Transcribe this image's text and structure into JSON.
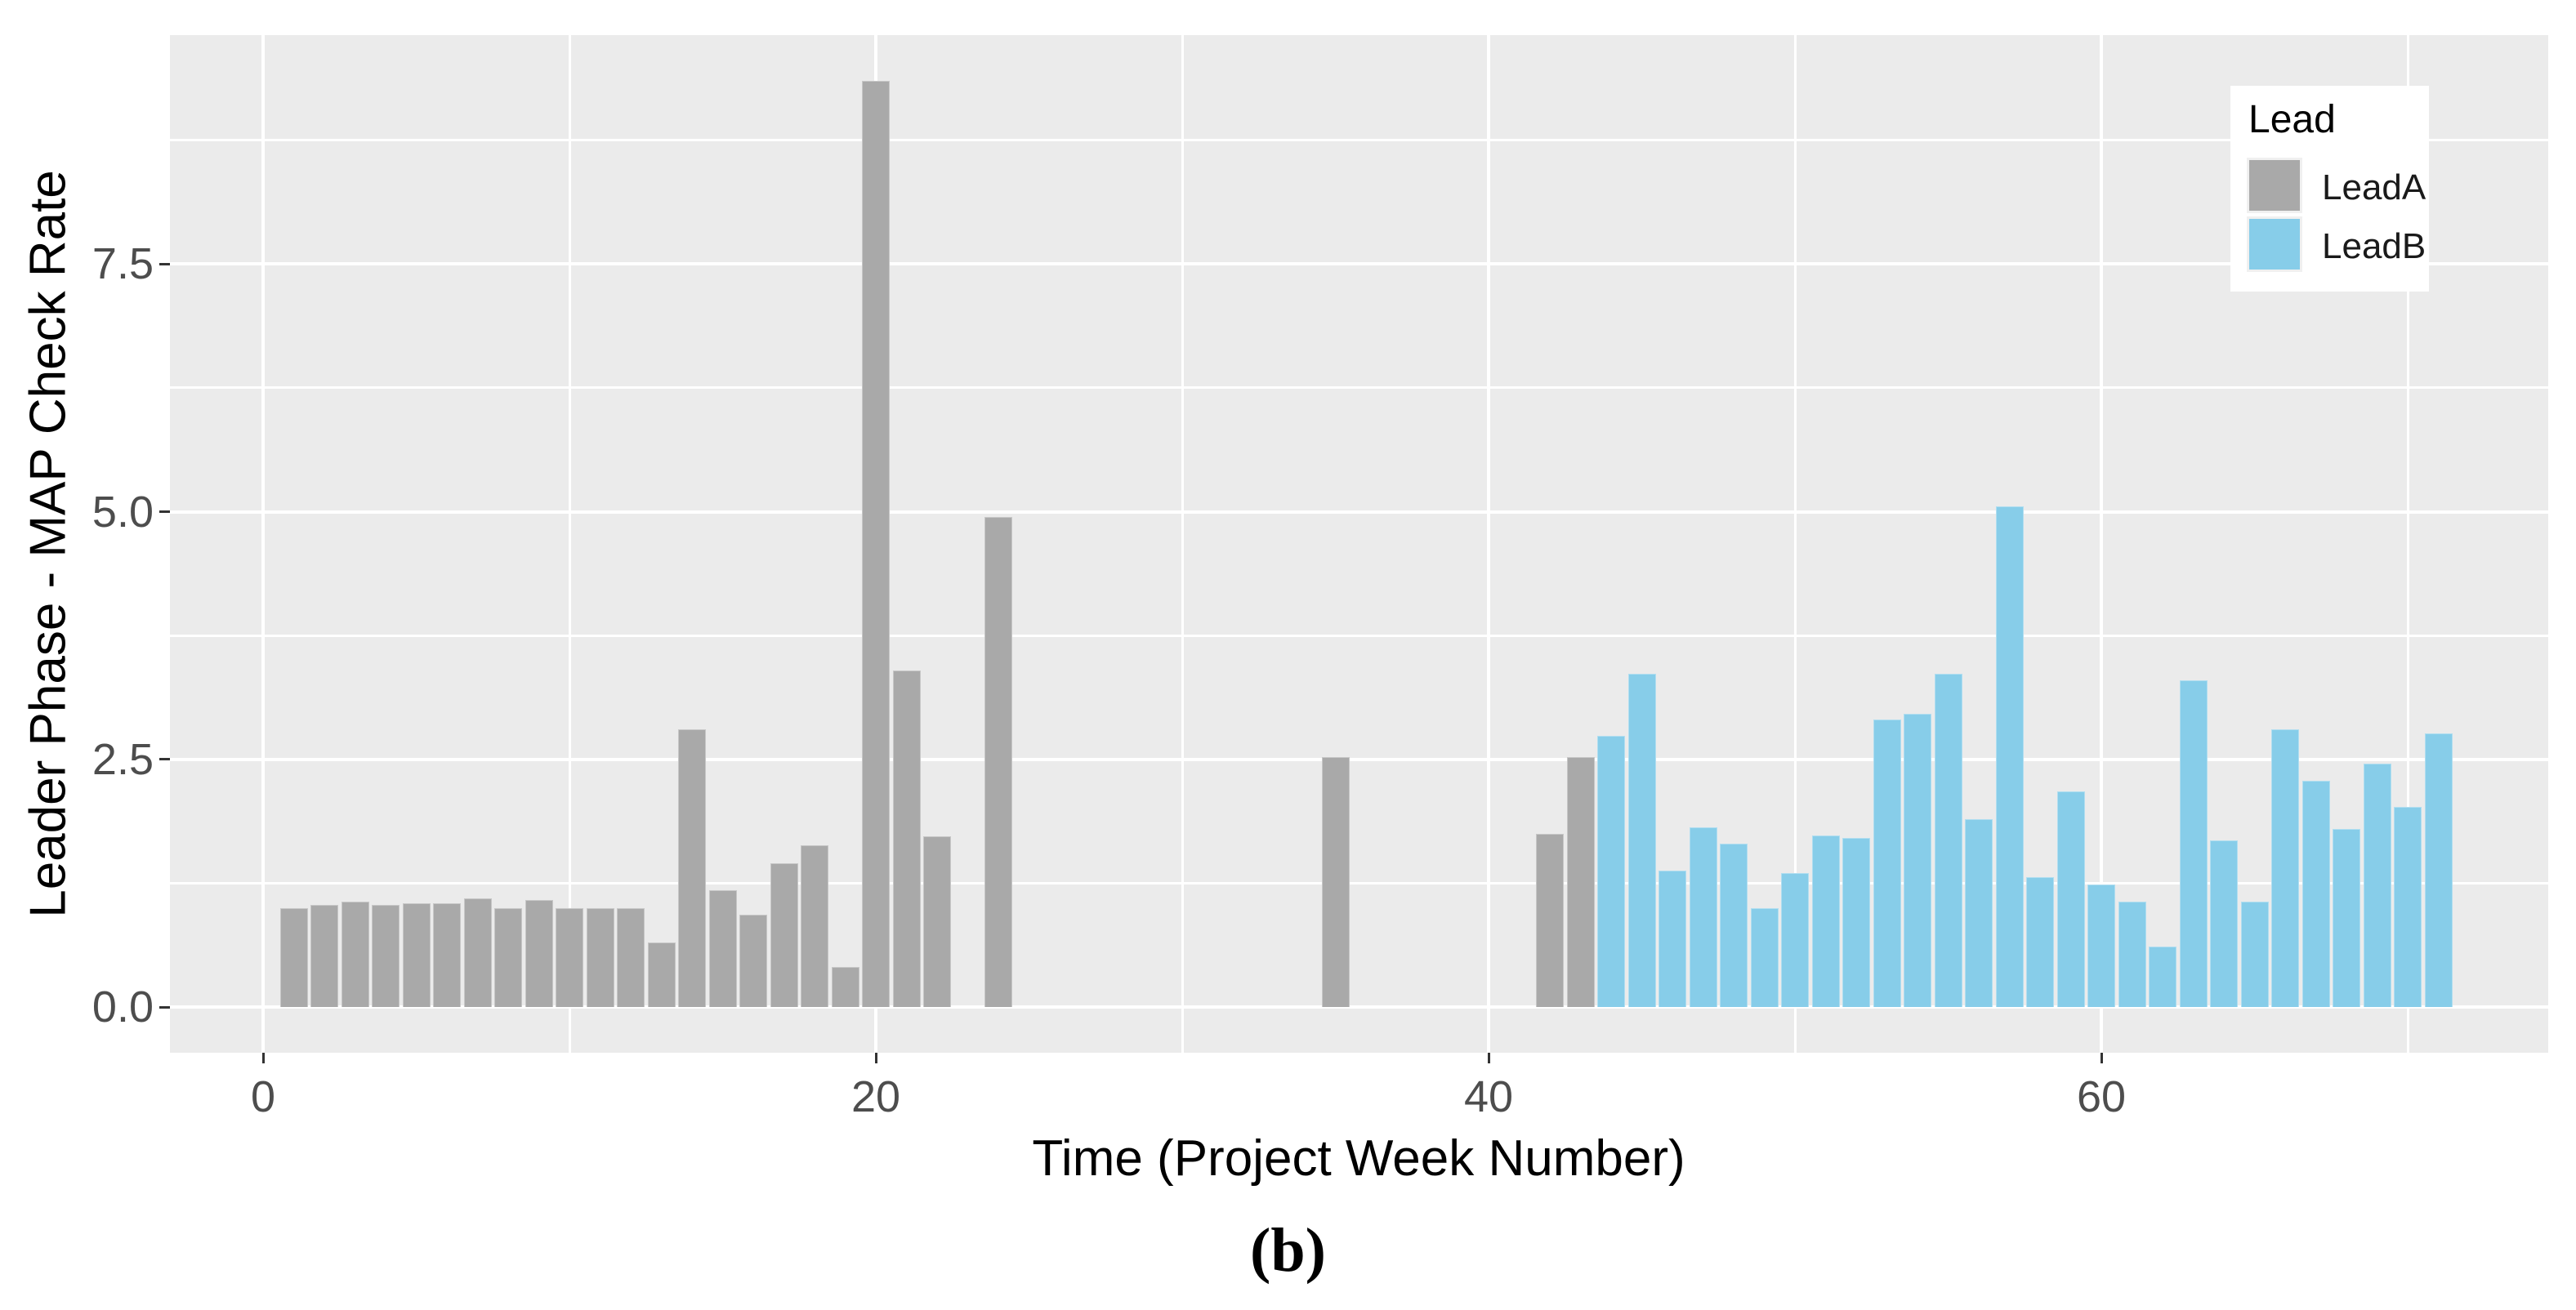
{
  "figure": {
    "caption": "(b)"
  },
  "colors": {
    "panel_background": "#EBEBEB",
    "gridline": "#FFFFFF",
    "lead_a": "#A9A9A9",
    "lead_b": "#87CDE9",
    "tick_label": "#4D4D4D",
    "tick_mark": "#333333",
    "axis_title": "#000000",
    "legend_background": "#FFFFFF",
    "legend_key_background": "#F0F0F0"
  },
  "chart_data": {
    "type": "bar",
    "title": "",
    "xlabel": "Time (Project Week Number)",
    "ylabel": "Leader Phase - MAP Check Rate",
    "xlim": [
      -3,
      74.5
    ],
    "ylim": [
      0,
      9.82
    ],
    "grid": true,
    "x_major_ticks": [
      {
        "value": 0,
        "label": "0"
      },
      {
        "value": 20,
        "label": "20"
      },
      {
        "value": 40,
        "label": "40"
      },
      {
        "value": 60,
        "label": "60"
      }
    ],
    "x_minor_ticks": [
      10,
      30,
      50,
      70
    ],
    "y_major_ticks": [
      {
        "value": 0,
        "label": "0.0"
      },
      {
        "value": 2.5,
        "label": "2.5"
      },
      {
        "value": 5,
        "label": "5.0"
      },
      {
        "value": 7.5,
        "label": "7.5"
      }
    ],
    "y_minor_ticks": [
      1.25,
      3.75,
      6.25,
      8.75
    ],
    "legend": {
      "title": "Lead",
      "position": "top-right",
      "entries": [
        {
          "label": "LeadA",
          "color": "#A9A9A9"
        },
        {
          "label": "LeadB",
          "color": "#87CDE9"
        }
      ]
    },
    "series": [
      {
        "name": "LeadA",
        "color": "#A9A9A9",
        "points": [
          [
            1,
            1.0
          ],
          [
            2,
            1.03
          ],
          [
            3,
            1.06
          ],
          [
            4,
            1.03
          ],
          [
            5,
            1.05
          ],
          [
            6,
            1.05
          ],
          [
            7,
            1.1
          ],
          [
            8,
            1.0
          ],
          [
            9,
            1.08
          ],
          [
            10,
            1.0
          ],
          [
            11,
            1.0
          ],
          [
            12,
            1.0
          ],
          [
            13,
            0.65
          ],
          [
            14,
            2.8
          ],
          [
            15,
            1.18
          ],
          [
            16,
            0.93
          ],
          [
            17,
            1.45
          ],
          [
            18,
            1.63
          ],
          [
            19,
            0.4
          ],
          [
            20,
            9.35
          ],
          [
            21,
            3.4
          ],
          [
            22,
            1.72
          ],
          [
            24,
            4.95
          ],
          [
            35,
            2.52
          ],
          [
            42,
            1.75
          ],
          [
            43,
            2.52
          ]
        ]
      },
      {
        "name": "LeadB",
        "color": "#87CDE9",
        "points": [
          [
            44,
            2.74
          ],
          [
            45,
            3.36
          ],
          [
            46,
            1.38
          ],
          [
            47,
            1.81
          ],
          [
            48,
            1.65
          ],
          [
            49,
            1.0
          ],
          [
            50,
            1.35
          ],
          [
            51,
            1.73
          ],
          [
            52,
            1.71
          ],
          [
            53,
            2.9
          ],
          [
            54,
            2.96
          ],
          [
            55,
            3.36
          ],
          [
            56,
            1.9
          ],
          [
            57,
            5.05
          ],
          [
            58,
            1.31
          ],
          [
            59,
            2.18
          ],
          [
            60,
            1.24
          ],
          [
            61,
            1.06
          ],
          [
            62,
            0.61
          ],
          [
            63,
            3.3
          ],
          [
            64,
            1.68
          ],
          [
            65,
            1.06
          ],
          [
            66,
            2.8
          ],
          [
            67,
            2.28
          ],
          [
            68,
            1.8
          ],
          [
            69,
            2.46
          ],
          [
            70,
            2.02
          ],
          [
            71,
            2.76
          ]
        ]
      }
    ]
  }
}
